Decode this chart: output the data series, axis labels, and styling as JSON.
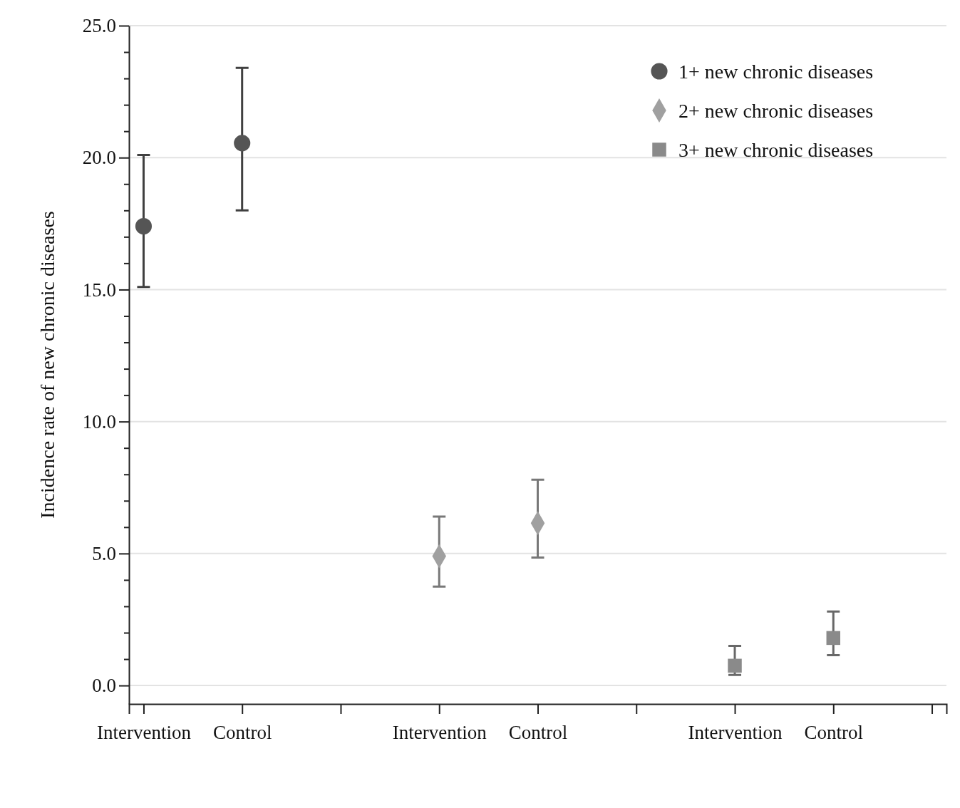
{
  "chart_data": {
    "type": "scatter",
    "ylabel": "Incidence rate of new chronic diseases",
    "categories": [
      "Intervention",
      "Control",
      null,
      "Intervention",
      "Control",
      null,
      "Intervention",
      "Control",
      null
    ],
    "ylim": [
      -0.7,
      25
    ],
    "yticks": [
      {
        "value": 0,
        "label": "0.0"
      },
      {
        "value": 1,
        "label": null
      },
      {
        "value": 2,
        "label": null
      },
      {
        "value": 3,
        "label": null
      },
      {
        "value": 4,
        "label": null
      },
      {
        "value": 5,
        "label": "5.0"
      },
      {
        "value": 6,
        "label": null
      },
      {
        "value": 7,
        "label": null
      },
      {
        "value": 8,
        "label": null
      },
      {
        "value": 9,
        "label": null
      },
      {
        "value": 10,
        "label": "10.0"
      },
      {
        "value": 11,
        "label": null
      },
      {
        "value": 12,
        "label": null
      },
      {
        "value": 13,
        "label": null
      },
      {
        "value": 14,
        "label": null
      },
      {
        "value": 15,
        "label": "15.0"
      },
      {
        "value": 16,
        "label": null
      },
      {
        "value": 17,
        "label": null
      },
      {
        "value": 18,
        "label": null
      },
      {
        "value": 19,
        "label": null
      },
      {
        "value": 20,
        "label": "20.0"
      },
      {
        "value": 21,
        "label": null
      },
      {
        "value": 22,
        "label": null
      },
      {
        "value": 23,
        "label": null
      },
      {
        "value": 24,
        "label": null
      },
      {
        "value": 25,
        "label": "25.0"
      }
    ],
    "grid": "y",
    "legend": "top right",
    "series": [
      {
        "name": "1+ new chronic diseases",
        "color": "#555555",
        "marker": "circle",
        "values": [
          17.4,
          20.55,
          null,
          null,
          null,
          null,
          null,
          null,
          null
        ],
        "errors": [
          [
            15.1,
            20.1
          ],
          [
            18.0,
            23.4
          ],
          null,
          null,
          null,
          null,
          null,
          null,
          null
        ]
      },
      {
        "name": "2+ new chronic diseases",
        "color": "#a0a0a0",
        "marker": "diamond",
        "values": [
          null,
          null,
          null,
          4.9,
          6.15,
          null,
          null,
          null,
          null
        ],
        "errors": [
          null,
          null,
          null,
          [
            3.75,
            6.4
          ],
          [
            4.85,
            7.8
          ],
          null,
          null,
          null,
          null
        ]
      },
      {
        "name": "3+ new chronic diseases",
        "color": "#8a8a8a",
        "marker": "square",
        "values": [
          null,
          null,
          null,
          null,
          null,
          null,
          0.75,
          1.8,
          null
        ],
        "errors": [
          null,
          null,
          null,
          null,
          null,
          null,
          [
            0.4,
            1.5
          ],
          [
            1.15,
            2.8
          ],
          null
        ]
      }
    ]
  }
}
